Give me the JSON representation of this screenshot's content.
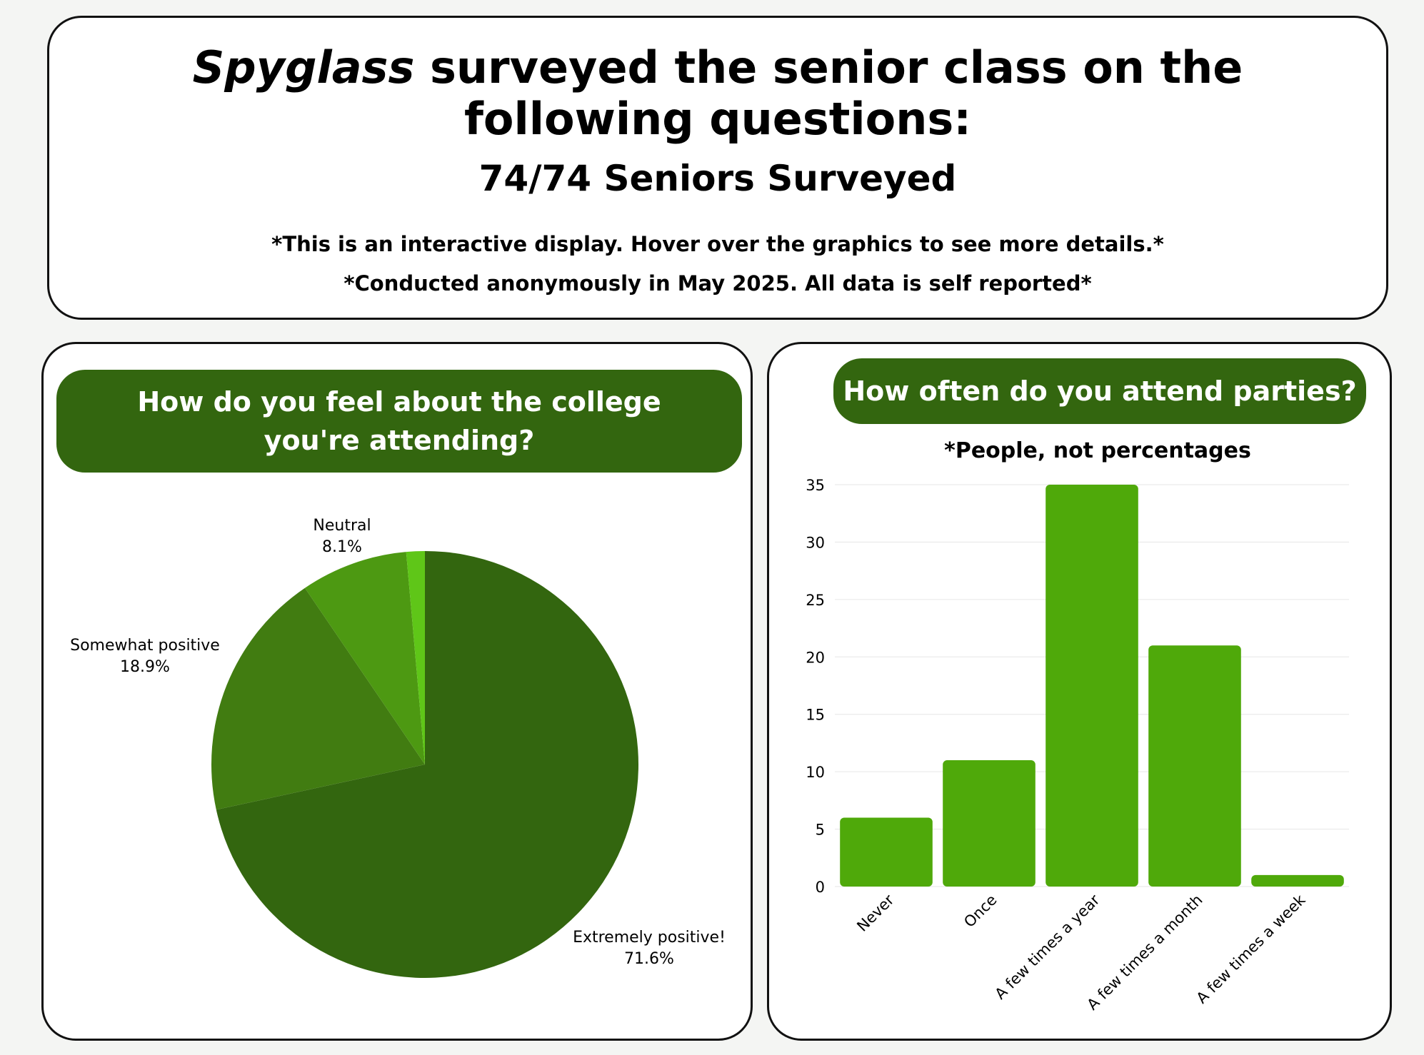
{
  "header": {
    "title_italic": "Spyglass",
    "title_rest": "surveyed the senior class on the",
    "title_line2": "following questions:",
    "subtitle": "74/74 Seniors Surveyed",
    "note1": "*This is an interactive display. Hover over the graphics to see more details.*",
    "note2": "*Conducted anonymously in May 2025. All data is self reported*"
  },
  "pie_panel": {
    "question": "How do you feel about the college you're attending?"
  },
  "bar_panel": {
    "question": "How often do you attend parties?",
    "subtitle": "*People, not percentages"
  },
  "colors": {
    "dark_green": "#33660f",
    "pie_extremely": "#33660f",
    "pie_somewhat": "#417c11",
    "pie_neutral": "#4d9912",
    "pie_other": "#5fc618",
    "bar_green": "#4fa90a"
  },
  "chart_data": [
    {
      "type": "pie",
      "title": "How do you feel about the college you're attending?",
      "slices": [
        {
          "label": "Extremely positive!",
          "value": 71.6,
          "value_label": "71.6%",
          "color": "#33660f"
        },
        {
          "label": "Somewhat positive",
          "value": 18.9,
          "value_label": "18.9%",
          "color": "#417c11"
        },
        {
          "label": "Neutral",
          "value": 8.1,
          "value_label": "8.1%",
          "color": "#4d9912"
        },
        {
          "label": "",
          "value": 1.4,
          "value_label": "",
          "color": "#5fc618"
        }
      ]
    },
    {
      "type": "bar",
      "title": "How often do you attend parties?",
      "subtitle": "*People, not percentages",
      "categories": [
        "Never",
        "Once",
        "A few times a year",
        "A few times a month",
        "A few times a week"
      ],
      "values": [
        6,
        11,
        35,
        21,
        1
      ],
      "ylim": [
        0,
        35
      ],
      "yticks": [
        0,
        5,
        10,
        15,
        20,
        25,
        30,
        35
      ],
      "grid": true,
      "color": "#4fa90a"
    }
  ]
}
